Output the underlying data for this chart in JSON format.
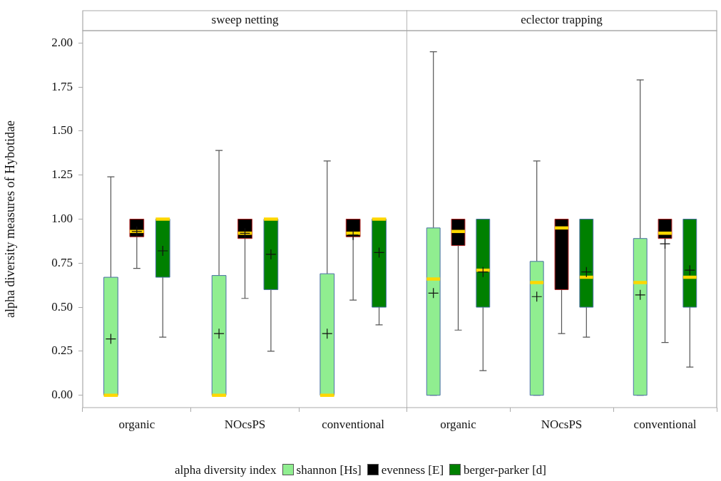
{
  "chart_data": [
    {
      "type": "box",
      "title": "sweep netting",
      "ylabel": "alpha diversity measures of Hybotidae",
      "categories": [
        "organic",
        "NOcsPS",
        "conventional"
      ],
      "ylim": [
        -0.07,
        2.07
      ],
      "yticks": [
        {
          "value": 0,
          "label": "0.00"
        },
        {
          "value": 0.25,
          "label": "0.25"
        },
        {
          "value": 0.5,
          "label": "0.50"
        },
        {
          "value": 0.75,
          "label": "0.75"
        },
        {
          "value": 1,
          "label": "1.00"
        },
        {
          "value": 1.25,
          "label": "1.25"
        },
        {
          "value": 1.5,
          "label": "1.50"
        },
        {
          "value": 1.75,
          "label": "1.75"
        },
        {
          "value": 2,
          "label": "2.00"
        }
      ],
      "legend": "bottom",
      "legend_title": "alpha diversity index",
      "marker": "cross",
      "series": [
        {
          "name": "shannon [Hs]",
          "color": "#90ee90",
          "boxes": [
            {
              "low": 0,
              "q1": 0,
              "median": 0,
              "q3": 0.67,
              "high": 1.24,
              "mean": 0.32
            },
            {
              "low": 0,
              "q1": 0,
              "median": 0,
              "q3": 0.68,
              "high": 1.39,
              "mean": 0.35
            },
            {
              "low": 0,
              "q1": 0,
              "median": 0,
              "q3": 0.69,
              "high": 1.33,
              "mean": 0.35
            }
          ]
        },
        {
          "name": "evenness [E]",
          "color": "#000000",
          "boxes": [
            {
              "low": 0.72,
              "q1": 0.9,
              "median": 0.93,
              "q3": 1,
              "high": 1,
              "mean": 0.93
            },
            {
              "low": 0.55,
              "q1": 0.89,
              "median": 0.92,
              "q3": 1,
              "high": 1,
              "mean": 0.92
            },
            {
              "low": 0.54,
              "q1": 0.9,
              "median": 0.92,
              "q3": 1,
              "high": 1,
              "mean": 0.91
            }
          ]
        },
        {
          "name": "berger-parker [d]",
          "color": "#008000",
          "boxes": [
            {
              "low": 0.33,
              "q1": 0.67,
              "median": 1,
              "q3": 1,
              "high": 1,
              "mean": 0.82
            },
            {
              "low": 0.25,
              "q1": 0.6,
              "median": 1,
              "q3": 1,
              "high": 1,
              "mean": 0.8
            },
            {
              "low": 0.4,
              "q1": 0.5,
              "median": 1,
              "q3": 1,
              "high": 1,
              "mean": 0.81
            }
          ]
        }
      ]
    },
    {
      "type": "box",
      "title": "eclector trapping",
      "categories": [
        "organic",
        "NOcsPS",
        "conventional"
      ],
      "ylim": [
        -0.07,
        2.07
      ],
      "tick_labels": "x",
      "marker": "cross",
      "series": [
        {
          "color": "#90ee90",
          "boxes": [
            {
              "low": 0,
              "q1": 0,
              "median": 0.66,
              "q3": 0.95,
              "high": 1.95,
              "mean": 0.58
            },
            {
              "low": 0,
              "q1": 0,
              "median": 0.64,
              "q3": 0.76,
              "high": 1.33,
              "mean": 0.56
            },
            {
              "low": 0,
              "q1": 0,
              "median": 0.64,
              "q3": 0.89,
              "high": 1.79,
              "mean": 0.57
            }
          ]
        },
        {
          "color": "#000000",
          "boxes": [
            {
              "low": 0.37,
              "q1": 0.85,
              "median": 0.93,
              "q3": 1,
              "high": 1
            },
            {
              "low": 0.35,
              "q1": 0.6,
              "median": 0.95,
              "q3": 1,
              "high": 1
            },
            {
              "low": 0.3,
              "q1": 0.89,
              "median": 0.92,
              "q3": 1,
              "high": 1,
              "mean": 0.86
            }
          ]
        },
        {
          "color": "#008000",
          "boxes": [
            {
              "low": 0.14,
              "q1": 0.5,
              "median": 0.71,
              "q3": 1,
              "high": 1,
              "mean": 0.7
            },
            {
              "low": 0.33,
              "q1": 0.5,
              "median": 0.67,
              "q3": 1,
              "high": 1,
              "mean": 0.7
            },
            {
              "low": 0.16,
              "q1": 0.5,
              "median": 0.67,
              "q3": 1,
              "high": 1,
              "mean": 0.71
            }
          ]
        }
      ]
    }
  ]
}
